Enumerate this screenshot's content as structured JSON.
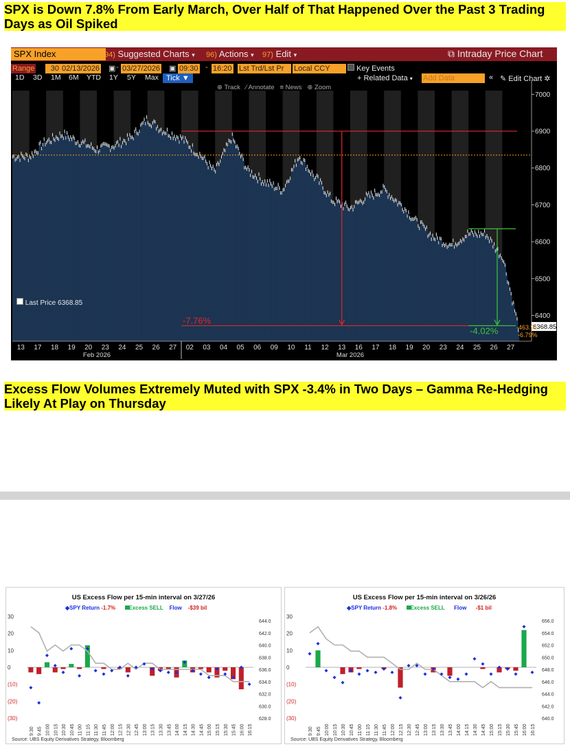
{
  "headline1": "SPX is Down 7.8% From Early March, Over Half of That Happened Over the Past 3 Trading Days as Oil Spiked",
  "headline2": "Excess Flow Volumes Extremely Muted with SPX -3.4% in Two Days – Gamma Re-Hedging Likely At Play on Thursday",
  "bloomberg": {
    "security": "SPX Index",
    "menu": [
      {
        "num": "94)",
        "label": "Suggested Charts"
      },
      {
        "num": "96)",
        "label": "Actions"
      },
      {
        "num": "97)",
        "label": "Edit"
      }
    ],
    "title": "Intraday Price Chart",
    "range_label": "Range",
    "range_days": "30",
    "date_from": "02/13/2026",
    "date_to": "03/27/2026",
    "time_from": "09:30",
    "time_to": "16:20",
    "trade_type": "Lst Trd/Lst Pr",
    "currency": "Local CCY",
    "key_events": "Key Events",
    "periods": [
      "1D",
      "3D",
      "1M",
      "6M",
      "YTD",
      "1Y",
      "5Y",
      "Max"
    ],
    "tick": "Tick",
    "related_data": "+ Related Data",
    "add_data_placeholder": "Add Data",
    "edit_chart": "Edit Chart",
    "tools": [
      "Track",
      "Annotate",
      "News",
      "Zoom"
    ],
    "last_price_label": "Last Price",
    "last_price": "6368.85",
    "annotation_big": "-7.76%",
    "annotation_small": "-4.02%",
    "side_change_pts": "-463.91",
    "side_change_pct": "-6.79%",
    "y_ticks": [
      6400,
      6500,
      6600,
      6700,
      6800,
      6900,
      7000
    ],
    "x_days_feb": [
      "13",
      "17",
      "18",
      "19",
      "20",
      "23",
      "24",
      "25",
      "26",
      "27"
    ],
    "x_days_mar": [
      "02",
      "03",
      "04",
      "05",
      "06",
      "09",
      "10",
      "11",
      "12",
      "13",
      "16",
      "17",
      "18",
      "19",
      "20",
      "23",
      "24",
      "25",
      "26",
      "27"
    ],
    "x_month_feb": "Feb 2026",
    "x_month_mar": "Mar 2026",
    "colors": {
      "bg": "#000000",
      "bars": "#1c3552",
      "orange": "#f7a128",
      "red": "#e3262c",
      "green": "#3ec63e"
    }
  },
  "chart_data": [
    {
      "type": "area",
      "title": "",
      "xlabel": "",
      "ylabel": "",
      "ylim": [
        6330,
        7010
      ],
      "x": [
        "02/13",
        "02/17",
        "02/18",
        "02/19",
        "02/20",
        "02/23",
        "02/24",
        "02/25",
        "02/26",
        "02/27",
        "03/02",
        "03/03",
        "03/04",
        "03/05",
        "03/06",
        "03/09",
        "03/10",
        "03/11",
        "03/12",
        "03/13",
        "03/16",
        "03/17",
        "03/18",
        "03/19",
        "03/20",
        "03/23",
        "03/24",
        "03/25",
        "03/26",
        "03/27"
      ],
      "series": [
        {
          "values": [
            6830,
            6870,
            6890,
            6870,
            6850,
            6860,
            6880,
            6930,
            6900,
            6880,
            6840,
            6790,
            6880,
            6790,
            6760,
            6740,
            6830,
            6770,
            6710,
            6690,
            6720,
            6740,
            6700,
            6650,
            6610,
            6590,
            6620,
            6620,
            6560,
            6369
          ]
        }
      ],
      "annotations": [
        "-7.76%",
        "-4.02%"
      ]
    },
    {
      "type": "bar",
      "title": "US Excess Flow per 15-min interval on 3/27/26",
      "legend": {
        "return_label": "SPY Return",
        "return_value": "-1.7%",
        "flow_label": "Excess SELL",
        "flow_word": "Flow",
        "flow_value": "-$39 bil"
      },
      "categories": [
        "9:30",
        "9:45",
        "10:00",
        "10:15",
        "10:30",
        "10:45",
        "11:00",
        "11:15",
        "11:30",
        "11:45",
        "12:00",
        "12:15",
        "12:30",
        "12:45",
        "13:00",
        "13:15",
        "13:30",
        "13:45",
        "14:00",
        "14:15",
        "14:30",
        "14:45",
        "15:00",
        "15:15",
        "15:30",
        "15:45",
        "16:00",
        "16:15"
      ],
      "y_left_ticks": [
        "30",
        "20",
        "10",
        "0",
        "(10)",
        "(20)",
        "(30)"
      ],
      "y_right_ticks": [
        "644.0",
        "642.0",
        "640.0",
        "638.0",
        "636.0",
        "634.0",
        "632.0",
        "630.0",
        "628.0"
      ],
      "ylim_left": [
        -30,
        30
      ],
      "ylim_right": [
        628,
        644
      ],
      "series": [
        {
          "name": "Excess SELL",
          "values": [
            -3,
            -4,
            3,
            -3,
            -1,
            2,
            -1,
            13,
            0,
            -1,
            0,
            -1,
            -3,
            0,
            0,
            -5,
            -2,
            -1,
            -6,
            4,
            -3,
            -1,
            -3,
            -6,
            -2,
            -7,
            -13,
            0
          ]
        },
        {
          "name": "SPY Return",
          "values": [
            -12,
            -21,
            7,
            1,
            -3,
            11,
            -5,
            11,
            -2,
            -4,
            -2,
            0,
            -5,
            0,
            2,
            -1,
            -2,
            -3,
            -3,
            3,
            -2,
            -4,
            -6,
            -1,
            -4,
            -6,
            0,
            -10
          ]
        },
        {
          "name": "Flow",
          "values": [
            643,
            642,
            639,
            640,
            639,
            640,
            640,
            639,
            637,
            637,
            636,
            636,
            637,
            636,
            637,
            637,
            636,
            636,
            636,
            636,
            636,
            636,
            635,
            635,
            635,
            634,
            634,
            634
          ]
        }
      ]
    },
    {
      "type": "bar",
      "title": "US Excess Flow per 15-min interval on 3/26/26",
      "legend": {
        "return_label": "SPY Return",
        "return_value": "-1.8%",
        "flow_label": "Excess SELL",
        "flow_word": "Flow",
        "flow_value": "-$1 bil"
      },
      "categories": [
        "9:30",
        "9:45",
        "10:00",
        "10:15",
        "10:30",
        "10:45",
        "11:00",
        "11:15",
        "11:30",
        "11:45",
        "12:00",
        "12:15",
        "12:30",
        "12:45",
        "13:00",
        "13:15",
        "13:30",
        "13:45",
        "14:00",
        "14:15",
        "14:30",
        "14:45",
        "15:00",
        "15:15",
        "15:30",
        "15:45",
        "16:00",
        "16:15"
      ],
      "y_left_ticks": [
        "30",
        "20",
        "10",
        "0",
        "(10)",
        "(20)",
        "(30)"
      ],
      "y_right_ticks": [
        "656.0",
        "654.0",
        "652.0",
        "650.0",
        "648.0",
        "646.0",
        "644.0",
        "642.0",
        "640.0"
      ],
      "ylim_left": [
        -30,
        30
      ],
      "ylim_right": [
        640,
        656
      ],
      "series": [
        {
          "name": "Excess SELL",
          "values": [
            0,
            10,
            0,
            0,
            -4,
            -3,
            -1,
            0,
            0,
            -1,
            0,
            -12,
            0,
            0,
            0,
            -3,
            0,
            -5,
            0,
            0,
            0,
            -1,
            0,
            -3,
            -1,
            -2,
            22,
            0
          ]
        },
        {
          "name": "SPY Return",
          "values": [
            8,
            14,
            -2,
            -6,
            -9,
            -2,
            -4,
            -2,
            -3,
            -1,
            -3,
            -18,
            1,
            1,
            -4,
            -1,
            -4,
            -6,
            -7,
            -4,
            5,
            2,
            -4,
            0,
            -1,
            -4,
            24,
            -3
          ]
        },
        {
          "name": "Flow",
          "values": [
            654,
            655,
            653,
            652,
            652,
            651,
            651,
            650,
            650,
            650,
            649,
            648,
            648,
            649,
            648,
            648,
            647,
            646,
            646,
            646,
            646,
            645,
            646,
            645,
            645,
            645,
            645,
            645
          ]
        }
      ]
    }
  ],
  "ubs": {
    "source": "Source: UBS Equity Derivatives Strategy, Bloomberg",
    "colors": {
      "bar_sell": "#c0202a",
      "bar_buy": "#1aa84a",
      "dot": "#1c2ee0",
      "line": "#b0b0b0",
      "red_axis": "#d02020"
    }
  }
}
